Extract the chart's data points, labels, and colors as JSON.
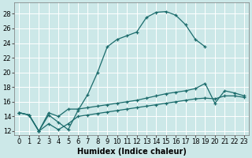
{
  "title": "",
  "xlabel": "Humidex (Indice chaleur)",
  "background_color": "#cce8e8",
  "grid_color": "#ffffff",
  "line_color": "#1a6b6b",
  "xlim": [
    -0.5,
    23.5
  ],
  "ylim": [
    11.5,
    29.5
  ],
  "yticks": [
    12,
    14,
    16,
    18,
    20,
    22,
    24,
    26,
    28
  ],
  "xticks": [
    0,
    1,
    2,
    3,
    4,
    5,
    6,
    7,
    8,
    9,
    10,
    11,
    12,
    13,
    14,
    15,
    16,
    17,
    18,
    19,
    20,
    21,
    22,
    23
  ],
  "series": [
    {
      "x": [
        0,
        1,
        2,
        3,
        4,
        5,
        6,
        7,
        8,
        9,
        10,
        11,
        12,
        13,
        14,
        15,
        16,
        17,
        18,
        19
      ],
      "y": [
        14.5,
        14.2,
        12.0,
        14.2,
        13.2,
        12.2,
        14.8,
        17.0,
        20.0,
        23.5,
        24.5,
        25.0,
        25.5,
        27.5,
        28.2,
        28.3,
        27.8,
        26.5,
        24.5,
        23.5
      ]
    },
    {
      "x": [
        0,
        1,
        2,
        3,
        4,
        5,
        6,
        7,
        8,
        9,
        10,
        11,
        12,
        13,
        14,
        15,
        16,
        17,
        18,
        19,
        20,
        21,
        22,
        23
      ],
      "y": [
        14.5,
        14.2,
        12.0,
        14.5,
        14.0,
        15.0,
        15.0,
        15.2,
        15.4,
        15.6,
        15.8,
        16.0,
        16.2,
        16.5,
        16.8,
        17.1,
        17.3,
        17.5,
        17.8,
        18.5,
        15.8,
        17.5,
        17.2,
        16.8
      ]
    },
    {
      "x": [
        0,
        1,
        2,
        3,
        4,
        5,
        6,
        7,
        8,
        9,
        10,
        11,
        12,
        13,
        14,
        15,
        16,
        17,
        18,
        19,
        20,
        21,
        22,
        23
      ],
      "y": [
        14.5,
        14.2,
        12.0,
        13.0,
        12.2,
        13.0,
        14.0,
        14.2,
        14.4,
        14.6,
        14.8,
        15.0,
        15.2,
        15.4,
        15.6,
        15.8,
        16.0,
        16.2,
        16.4,
        16.5,
        16.4,
        16.8,
        16.8,
        16.6
      ]
    }
  ],
  "xlabel_fontsize": 7,
  "tick_fontsize": 6
}
